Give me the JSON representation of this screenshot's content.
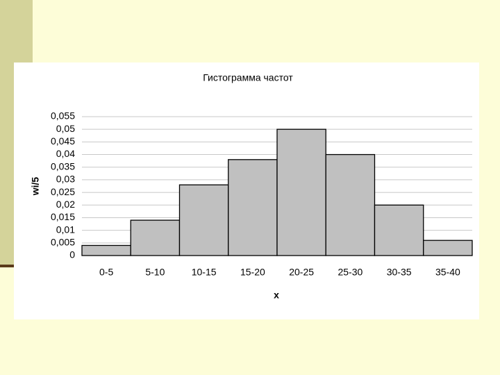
{
  "chart_data": {
    "type": "bar",
    "title": "Гистограмма частот",
    "x_label": "x",
    "y_label": "wi/5",
    "categories": [
      "0-5",
      "5-10",
      "10-15",
      "15-20",
      "20-25",
      "25-30",
      "30-35",
      "35-40"
    ],
    "values": [
      0.004,
      0.014,
      0.028,
      0.038,
      0.05,
      0.04,
      0.02,
      0.006
    ],
    "color": "#c0c0c0",
    "ylim": [
      0,
      0.055
    ],
    "yticks": [
      0,
      {
        "value": 0.005,
        "label": "0,005"
      },
      {
        "value": 0.01,
        "label": "0,01"
      },
      {
        "value": 0.015,
        "label": "0,015"
      },
      {
        "value": 0.02,
        "label": "0,02"
      },
      {
        "value": 0.025,
        "label": "0,025"
      },
      {
        "value": 0.03,
        "label": "0,03"
      },
      {
        "value": 0.035,
        "label": "0,035"
      },
      {
        "value": 0.04,
        "label": "0,04"
      },
      {
        "value": 0.045,
        "label": "0,045"
      },
      {
        "value": 0.05,
        "label": "0,05"
      },
      {
        "value": 0.055,
        "label": "0,055"
      }
    ],
    "grid": true
  }
}
